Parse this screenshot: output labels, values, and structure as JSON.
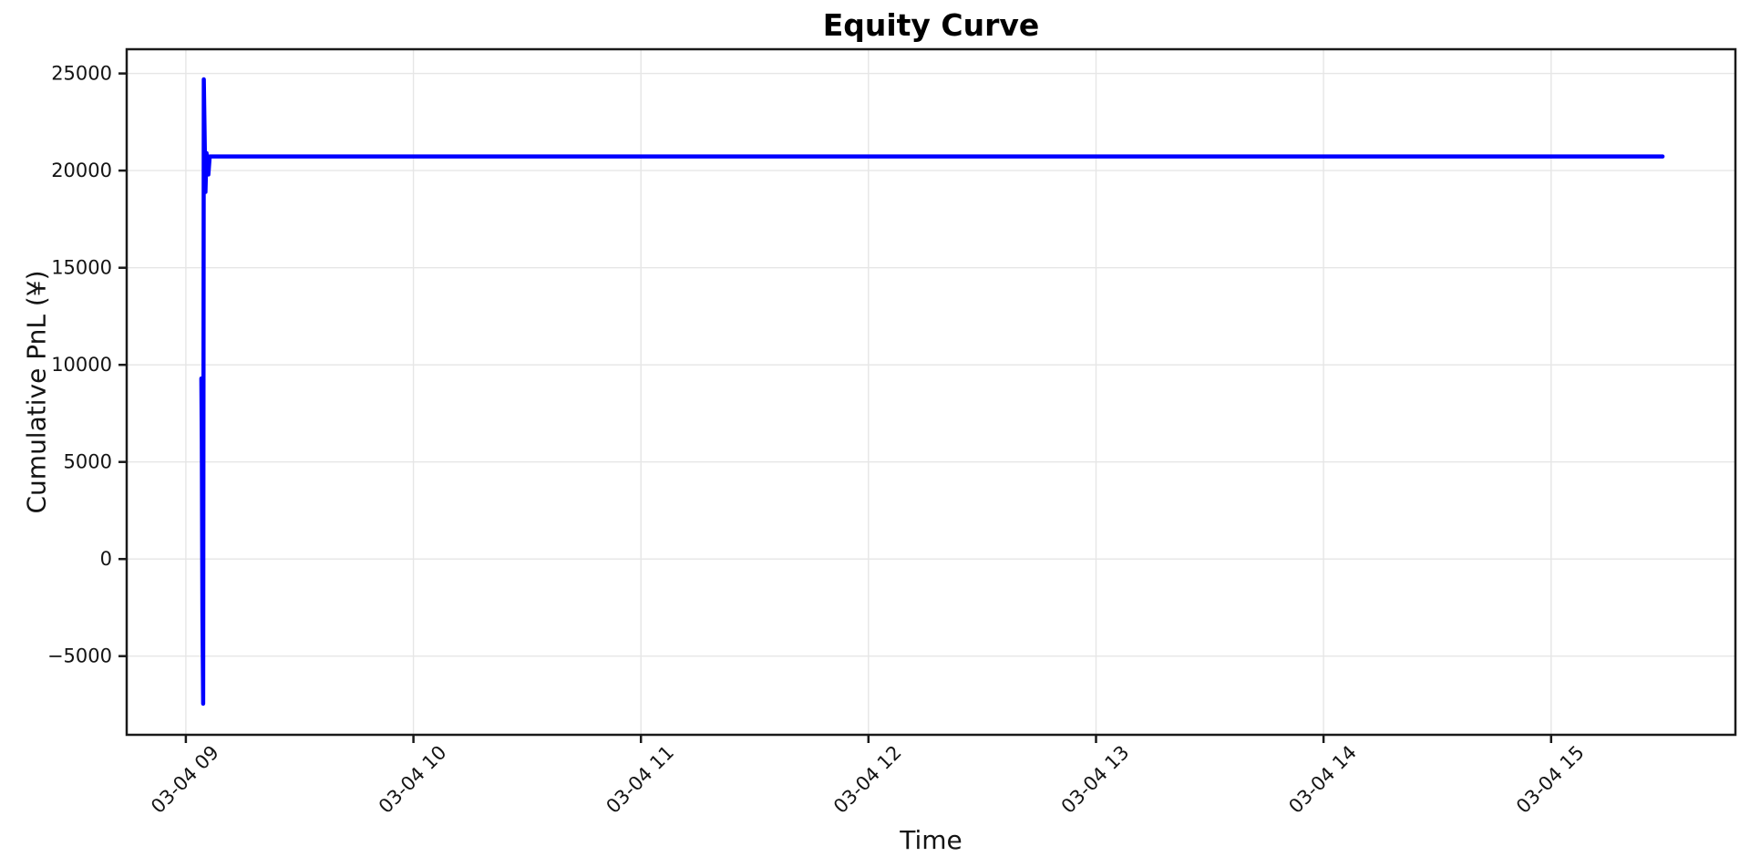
{
  "figure": {
    "title": "Equity Curve",
    "xlabel": "Time",
    "ylabel": "Cumulative PnL (¥)"
  },
  "colors": {
    "line": "#0000ff",
    "grid": "#e6e6e6",
    "spine": "#1a1a1a",
    "tick_text": "#141414",
    "background": "#ffffff"
  },
  "chart_data": {
    "type": "line",
    "title": "Equity Curve",
    "xlabel": "Time",
    "ylabel": "Cumulative PnL (¥)",
    "x_unit": "decimal hours on date 03-04",
    "grid": true,
    "legend": "none",
    "line_color": "#0000ff",
    "line_width": 4.5,
    "xlim": [
      8.74,
      15.81
    ],
    "ylim": [
      -9050,
      26250
    ],
    "x_ticks": [
      {
        "value": 9,
        "label": "03-04 09"
      },
      {
        "value": 10,
        "label": "03-04 10"
      },
      {
        "value": 11,
        "label": "03-04 11"
      },
      {
        "value": 12,
        "label": "03-04 12"
      },
      {
        "value": 13,
        "label": "03-04 13"
      },
      {
        "value": 14,
        "label": "03-04 14"
      },
      {
        "value": 15,
        "label": "03-04 15"
      }
    ],
    "y_ticks": [
      {
        "value": -5000,
        "label": "−5000"
      },
      {
        "value": 0,
        "label": "0"
      },
      {
        "value": 5000,
        "label": "5000"
      },
      {
        "value": 10000,
        "label": "10000"
      },
      {
        "value": 15000,
        "label": "15000"
      },
      {
        "value": 20000,
        "label": "20000"
      },
      {
        "value": 25000,
        "label": "25000"
      }
    ],
    "series": [
      {
        "name": "Cumulative PnL",
        "points": [
          [
            9.068,
            9300
          ],
          [
            9.07,
            6100
          ],
          [
            9.073,
            -2750
          ],
          [
            9.076,
            -7450
          ],
          [
            9.079,
            24700
          ],
          [
            9.086,
            18900
          ],
          [
            9.091,
            20900
          ],
          [
            9.099,
            19800
          ],
          [
            9.105,
            20730
          ],
          [
            15.49,
            20730
          ]
        ]
      }
    ]
  }
}
